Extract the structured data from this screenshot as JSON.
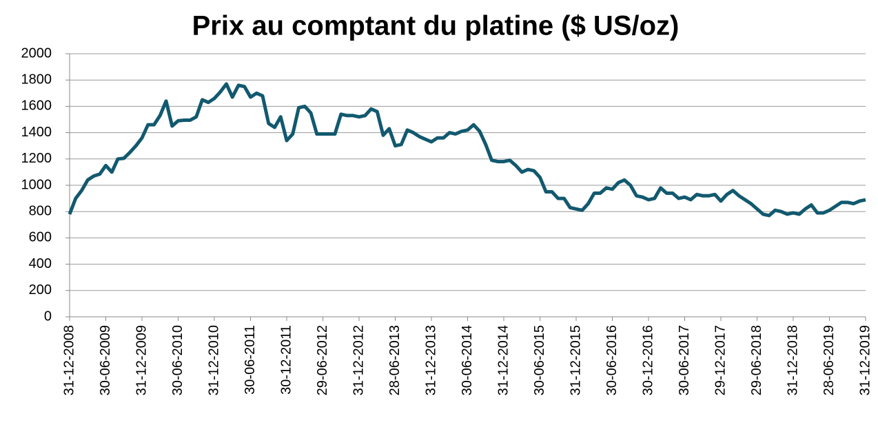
{
  "chart_data": {
    "type": "line",
    "title": "Prix au comptant du platine ($ US/oz)",
    "categories": [
      "31-12-2008",
      null,
      null,
      null,
      null,
      null,
      "30-06-2009",
      null,
      null,
      null,
      null,
      null,
      "31-12-2009",
      null,
      null,
      null,
      null,
      null,
      "30-06-2010",
      null,
      null,
      null,
      null,
      null,
      "31-12-2010",
      null,
      null,
      null,
      null,
      null,
      "30-06-2011",
      null,
      null,
      null,
      null,
      null,
      "30-12-2011",
      null,
      null,
      null,
      null,
      null,
      "29-06-2012",
      null,
      null,
      null,
      null,
      null,
      "31-12-2012",
      null,
      null,
      null,
      null,
      null,
      "28-06-2013",
      null,
      null,
      null,
      null,
      null,
      "31-12-2013",
      null,
      null,
      null,
      null,
      null,
      "30-06-2014",
      null,
      null,
      null,
      null,
      null,
      "31-12-2014",
      null,
      null,
      null,
      null,
      null,
      "30-06-2015",
      null,
      null,
      null,
      null,
      null,
      "31-12-2015",
      null,
      null,
      null,
      null,
      null,
      "30-06-2016",
      null,
      null,
      null,
      null,
      null,
      "30-12-2016",
      null,
      null,
      null,
      null,
      null,
      "30-06-2017",
      null,
      null,
      null,
      null,
      null,
      "29-12-2017",
      null,
      null,
      null,
      null,
      null,
      "29-06-2018",
      null,
      null,
      null,
      null,
      null,
      "31-12-2018",
      null,
      null,
      null,
      null,
      null,
      "28-06-2019",
      null,
      null,
      null,
      null,
      null,
      "31-12-2019"
    ],
    "series": [
      {
        "color": "#12596f",
        "values": [
          780,
          900,
          960,
          1040,
          1070,
          1085,
          1150,
          1100,
          1200,
          1205,
          1250,
          1300,
          1360,
          1460,
          1460,
          1530,
          1640,
          1450,
          1490,
          1495,
          1495,
          1520,
          1650,
          1630,
          1660,
          1710,
          1770,
          1670,
          1760,
          1750,
          1670,
          1700,
          1680,
          1470,
          1440,
          1520,
          1340,
          1390,
          1590,
          1600,
          1550,
          1390,
          1390,
          1390,
          1390,
          1540,
          1530,
          1530,
          1520,
          1530,
          1580,
          1560,
          1380,
          1430,
          1300,
          1310,
          1420,
          1400,
          1370,
          1350,
          1330,
          1360,
          1360,
          1400,
          1390,
          1410,
          1420,
          1460,
          1410,
          1310,
          1190,
          1180,
          1180,
          1190,
          1150,
          1100,
          1120,
          1110,
          1060,
          950,
          950,
          900,
          900,
          830,
          820,
          810,
          860,
          940,
          940,
          980,
          970,
          1020,
          1040,
          1000,
          920,
          910,
          890,
          900,
          980,
          940,
          940,
          900,
          910,
          890,
          930,
          920,
          920,
          930,
          880,
          930,
          960,
          920,
          890,
          860,
          820,
          780,
          770,
          810,
          800,
          780,
          790,
          780,
          820,
          850,
          790,
          790,
          810,
          840,
          870,
          870,
          860,
          880,
          890
        ]
      }
    ],
    "ylim": [
      0,
      2000
    ],
    "yticks": [
      0,
      200,
      400,
      600,
      800,
      1000,
      1200,
      1400,
      1600,
      1800,
      2000
    ],
    "grid": true
  }
}
